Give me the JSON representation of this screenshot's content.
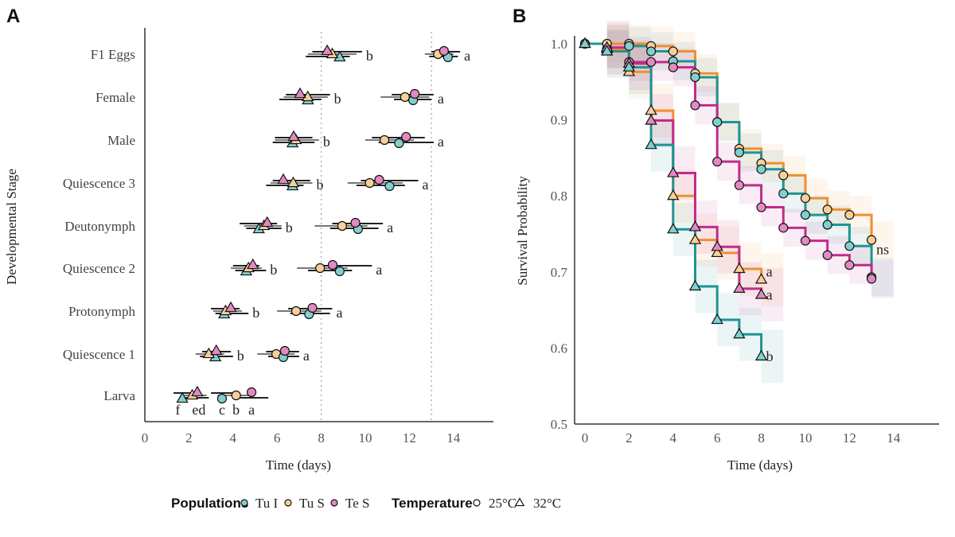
{
  "colors": {
    "Tu I": {
      "line": "#1f9494",
      "fill": "#7fd0cf"
    },
    "Tu S": {
      "line": "#f0902c",
      "fill": "#f8cf98"
    },
    "Te S": {
      "line": "#c22a8c",
      "fill": "#e38ac2"
    }
  },
  "legend": {
    "populations_title": "Populations",
    "populations": [
      "Tu I",
      "Tu S",
      "Te S"
    ],
    "temperature_title": "Temperature",
    "temperatures": [
      {
        "label": "25°C",
        "shape": "circle"
      },
      {
        "label": "32°C",
        "shape": "triangle"
      }
    ]
  },
  "chart_data": [
    {
      "panel": "A",
      "type": "scatter",
      "xlabel": "Time (days)",
      "ylabel": "Developmental Stage",
      "xlim": [
        0,
        16
      ],
      "xticks": [
        0,
        2,
        4,
        6,
        8,
        10,
        12,
        14
      ],
      "reference_lines_x": [
        8,
        13
      ],
      "grid": false,
      "stages": [
        {
          "name": "F1 Eggs",
          "32C": {
            "Tu I": [
              8.84,
              7.6,
              9.85
            ],
            "Tu S": [
              8.5,
              7.4,
              9.6
            ],
            "Te S": [
              8.27,
              7.3,
              9.3
            ],
            "letter": "b"
          },
          "25C": {
            "Tu I": [
              13.75,
              13.0,
              14.3
            ],
            "Tu S": [
              13.3,
              12.7,
              14.0
            ],
            "Te S": [
              13.57,
              12.9,
              14.2
            ],
            "letter": "a"
          }
        },
        {
          "name": "Female",
          "32C": {
            "Tu I": [
              7.4,
              6.4,
              8.4
            ],
            "Tu S": [
              7.39,
              6.3,
              8.3
            ],
            "Te S": [
              7.04,
              6.1,
              8.0
            ],
            "letter": "b"
          },
          "25C": {
            "Tu I": [
              12.17,
              11.2,
              13.1
            ],
            "Tu S": [
              11.8,
              10.7,
              12.9
            ],
            "Te S": [
              12.24,
              11.3,
              13.0
            ],
            "letter": "a"
          }
        },
        {
          "name": "Male",
          "32C": {
            "Tu I": [
              6.7,
              5.9,
              7.6
            ],
            "Tu S": [
              6.85,
              5.9,
              7.9
            ],
            "Te S": [
              6.75,
              5.8,
              7.7
            ],
            "letter": "b"
          },
          "25C": {
            "Tu I": [
              11.53,
              10.3,
              12.7
            ],
            "Tu S": [
              10.87,
              10.0,
              12.2
            ],
            "Te S": [
              11.85,
              10.6,
              13.1
            ],
            "letter": "a"
          }
        },
        {
          "name": "Quiescence 3",
          "32C": {
            "Tu I": [
              6.7,
              5.8,
              7.5
            ],
            "Tu S": [
              6.73,
              5.7,
              7.6
            ],
            "Te S": [
              6.28,
              5.5,
              7.2
            ],
            "letter": "b"
          },
          "25C": {
            "Tu I": [
              11.1,
              9.8,
              12.4
            ],
            "Tu S": [
              10.2,
              9.2,
              11.7
            ],
            "Te S": [
              10.63,
              9.6,
              11.8
            ],
            "letter": "a"
          }
        },
        {
          "name": "Deutonymph",
          "32C": {
            "Tu I": [
              5.17,
              4.3,
              6.0
            ],
            "Tu S": [
              5.4,
              4.5,
              6.2
            ],
            "Te S": [
              5.55,
              4.6,
              6.2
            ],
            "letter": "b"
          },
          "25C": {
            "Tu I": [
              9.67,
              8.5,
              10.8
            ],
            "Tu S": [
              8.95,
              7.7,
              10.1
            ],
            "Te S": [
              9.55,
              8.4,
              10.6
            ],
            "letter": "a"
          }
        },
        {
          "name": "Quiescence 2",
          "32C": {
            "Tu I": [
              4.6,
              4.0,
              5.2
            ],
            "Tu S": [
              4.7,
              3.9,
              5.3
            ],
            "Te S": [
              4.9,
              4.1,
              5.5
            ],
            "letter": "b"
          },
          "25C": {
            "Tu I": [
              8.84,
              7.8,
              10.3
            ],
            "Tu S": [
              7.95,
              6.9,
              9.2
            ],
            "Te S": [
              8.52,
              7.4,
              9.4
            ],
            "letter": "a"
          }
        },
        {
          "name": "Protonymph",
          "32C": {
            "Tu I": [
              3.6,
              3.0,
              4.3
            ],
            "Tu S": [
              3.66,
              3.1,
              4.4
            ],
            "Te S": [
              3.9,
              3.2,
              4.7
            ],
            "letter": "b"
          },
          "25C": {
            "Tu I": [
              7.45,
              6.5,
              8.5
            ],
            "Tu S": [
              6.86,
              6.0,
              8.0
            ],
            "Te S": [
              7.6,
              6.6,
              8.4
            ],
            "letter": "a"
          }
        },
        {
          "name": "Quiescence 1",
          "32C": {
            "Tu I": [
              3.2,
              2.6,
              3.9
            ],
            "Tu S": [
              2.9,
              2.3,
              3.6
            ],
            "Te S": [
              3.24,
              2.5,
              4.0
            ],
            "letter": "b"
          },
          "25C": {
            "Tu I": [
              6.28,
              5.5,
              7.0
            ],
            "Tu S": [
              5.96,
              5.1,
              6.8
            ],
            "Te S": [
              6.35,
              5.6,
              7.0
            ],
            "letter": "a"
          }
        },
        {
          "name": "Larva",
          "32C": {
            "Tu I": [
              1.7,
              1.3,
              2.4
            ],
            "Tu S": [
              2.15,
              1.6,
              2.8
            ],
            "Te S": [
              2.38,
              1.8,
              2.9
            ],
            "letter": "f ed"
          },
          "25C": {
            "Tu I": [
              3.5,
              3.0,
              4.2
            ],
            "Tu S": [
              4.14,
              3.3,
              5.0
            ],
            "Te S": [
              4.84,
              4.1,
              5.6
            ],
            "letter": "c b a"
          }
        }
      ]
    },
    {
      "panel": "B",
      "type": "line",
      "step": true,
      "xlabel": "Time (days)",
      "ylabel": "Survival Probability",
      "xlim": [
        -0.5,
        16
      ],
      "ylim": [
        0.5,
        1.0
      ],
      "xticks": [
        0,
        2,
        4,
        6,
        8,
        10,
        12,
        14
      ],
      "yticks": [
        0.5,
        0.6,
        0.7,
        0.8,
        0.9,
        1.0
      ],
      "grid": false,
      "series": [
        {
          "population": "Tu S",
          "temperature": "25°C",
          "x": [
            0,
            1,
            2,
            3,
            4,
            5,
            6,
            7,
            8,
            9,
            10,
            11,
            12,
            13
          ],
          "y": [
            1.0,
            1.0,
            1.0,
            0.997,
            0.99,
            0.961,
            0.897,
            0.862,
            0.843,
            0.827,
            0.797,
            0.782,
            0.775,
            0.742
          ],
          "label": "ns"
        },
        {
          "population": "Tu I",
          "temperature": "25°C",
          "x": [
            0,
            1,
            2,
            3,
            4,
            5,
            6,
            7,
            8,
            9,
            10,
            11,
            12,
            13
          ],
          "y": [
            1.0,
            0.993,
            0.997,
            0.99,
            0.977,
            0.956,
            0.897,
            0.857,
            0.835,
            0.803,
            0.775,
            0.762,
            0.734,
            0.693
          ],
          "label": ""
        },
        {
          "population": "Te S",
          "temperature": "25°C",
          "x": [
            0,
            1,
            2,
            3,
            4,
            5,
            6,
            7,
            8,
            9,
            10,
            11,
            12,
            13
          ],
          "y": [
            1.0,
            0.993,
            0.976,
            0.976,
            0.969,
            0.919,
            0.845,
            0.814,
            0.785,
            0.758,
            0.741,
            0.722,
            0.709,
            0.691
          ],
          "label": ""
        },
        {
          "population": "Tu S",
          "temperature": "32°C",
          "x": [
            0,
            1,
            2,
            3,
            4,
            5,
            6,
            7,
            8
          ],
          "y": [
            1.0,
            0.993,
            0.963,
            0.912,
            0.8,
            0.742,
            0.725,
            0.704,
            0.69
          ],
          "label": "a"
        },
        {
          "population": "Te S",
          "temperature": "32°C",
          "x": [
            0,
            1,
            2,
            3,
            4,
            5,
            6,
            7,
            8
          ],
          "y": [
            1.0,
            0.995,
            0.974,
            0.899,
            0.83,
            0.759,
            0.733,
            0.678,
            0.67
          ],
          "label": "a"
        },
        {
          "population": "Tu I",
          "temperature": "32°C",
          "x": [
            0,
            1,
            2,
            3,
            4,
            5,
            6,
            7,
            8
          ],
          "y": [
            1.0,
            0.99,
            0.969,
            0.867,
            0.756,
            0.681,
            0.637,
            0.618,
            0.589
          ],
          "label": "b"
        }
      ]
    }
  ],
  "panels": {
    "a": "A",
    "b": "B"
  }
}
